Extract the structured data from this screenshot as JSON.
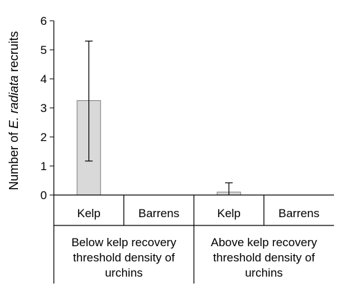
{
  "chart_data": {
    "type": "bar",
    "ylabel_parts": [
      "Number of ",
      "E. radiata",
      " recruits"
    ],
    "ylim": [
      0,
      6
    ],
    "y_ticks": [
      "0",
      "1",
      "2",
      "3",
      "4",
      "5",
      "6"
    ],
    "categories": [
      "Kelp",
      "Barrens",
      "Kelp",
      "Barrens"
    ],
    "values": [
      3.25,
      0,
      0.1,
      0
    ],
    "error_upper": [
      5.3,
      0,
      0.42,
      0
    ],
    "error_lower": [
      1.17,
      0,
      0,
      0
    ],
    "groups": [
      {
        "lines": [
          "Below kelp recovery",
          "threshold density of",
          "urchins"
        ]
      },
      {
        "lines": [
          "Above kelp recovery",
          "threshold density of",
          "urchins"
        ]
      }
    ],
    "bar_color": "#d9d9d9",
    "bar_outline": "#7f7f7f",
    "grid": false,
    "legend": false
  }
}
